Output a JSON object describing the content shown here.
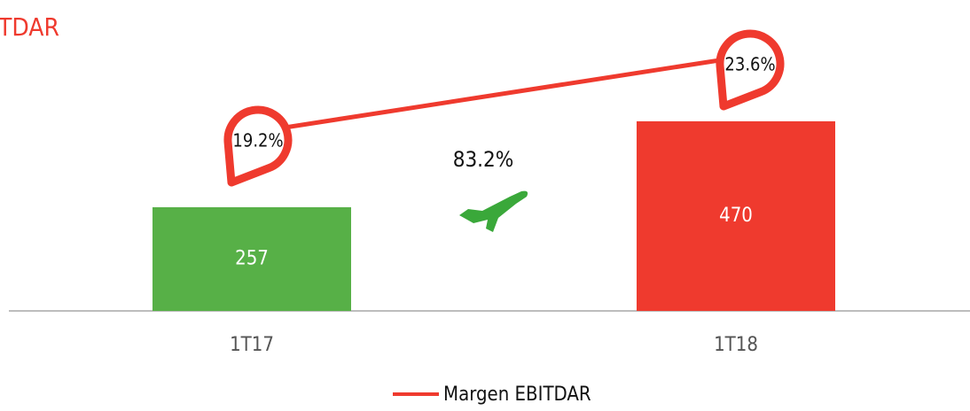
{
  "chart_data": {
    "type": "bar",
    "title": "TDAR",
    "categories": [
      "1T17",
      "1T18"
    ],
    "series": [
      {
        "values": [
          257,
          470
        ],
        "colors": [
          "#57b047",
          "#ef3a2e"
        ]
      },
      {
        "name": "Margen EBITDAR",
        "type": "line",
        "color": "#ef3a2e",
        "values": [
          19.2,
          23.6
        ],
        "value_labels": [
          "19.2%",
          "23.6%"
        ]
      }
    ],
    "annotation": "83.2%"
  }
}
